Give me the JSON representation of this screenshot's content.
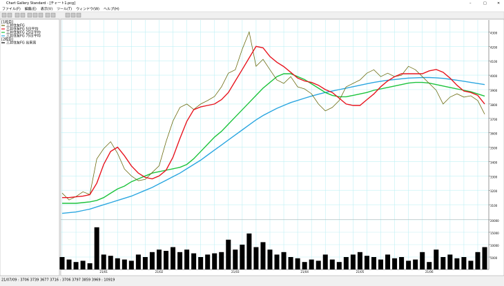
{
  "window": {
    "title": "Chart Gallery Standard - [チャート1.pcg]",
    "menu": [
      "ファイル(F)",
      "編集(E)",
      "表示(V)",
      "ツール(T)",
      "ウィンドウ(W)",
      "ヘルプ(H)"
    ]
  },
  "panel": {
    "section1": "[1段目]",
    "section2": "[2段目]"
  },
  "status": "21/07/09 : 3706 3739 3677 3716 : 3706 3797 3859 3969 : 10919",
  "chart_data": {
    "type": "line",
    "grid": true,
    "categories": [
      null,
      null,
      null,
      null,
      null,
      null,
      "21/01",
      null,
      null,
      null,
      null,
      null,
      null,
      null,
      "21/02",
      null,
      null,
      null,
      null,
      null,
      null,
      null,
      null,
      null,
      null,
      "21/03",
      null,
      null,
      null,
      null,
      null,
      null,
      null,
      null,
      null,
      "21/04",
      null,
      null,
      null,
      null,
      null,
      null,
      null,
      "21/05",
      null,
      null,
      null,
      null,
      null,
      null,
      null,
      null,
      null,
      "21/06",
      null,
      null,
      null,
      null,
      null,
      null,
      null,
      null
    ],
    "ylim": [
      3000,
      4350
    ],
    "yticks": [
      3100,
      3200,
      3300,
      3400,
      3500,
      3600,
      3700,
      3800,
      3900,
      4000,
      4100,
      4200,
      4300
    ],
    "series": [
      {
        "name": "三井住友FG",
        "color": "#6b6b10",
        "values": [
          3181,
          3133,
          3157,
          3190,
          3171,
          3419,
          3490,
          3538,
          3457,
          3348,
          3300,
          3267,
          3276,
          3324,
          3371,
          3538,
          3681,
          3776,
          3800,
          3762,
          3800,
          3824,
          3852,
          3919,
          4014,
          4038,
          4181,
          4300,
          4062,
          4110,
          4038,
          3967,
          3943,
          3990,
          3919,
          3905,
          3871,
          3800,
          3752,
          3776,
          3824,
          3919,
          3943,
          3967,
          4014,
          4038,
          3990,
          4014,
          3990,
          4000,
          4062,
          4038,
          3990,
          3943,
          3895,
          3800,
          3848,
          3871,
          3848,
          3857,
          3824,
          3729
        ]
      },
      {
        "name": "三井住友FG 5日平均",
        "color": "#e8141e",
        "values": [
          3150,
          3150,
          3155,
          3160,
          3170,
          3250,
          3380,
          3470,
          3500,
          3440,
          3370,
          3320,
          3290,
          3280,
          3300,
          3340,
          3430,
          3560,
          3680,
          3760,
          3780,
          3790,
          3800,
          3830,
          3880,
          3960,
          4040,
          4120,
          4200,
          4190,
          4130,
          4090,
          4060,
          4020,
          3980,
          3960,
          3950,
          3930,
          3900,
          3880,
          3840,
          3800,
          3790,
          3790,
          3830,
          3870,
          3920,
          3960,
          3990,
          4010,
          4010,
          4010,
          4010,
          4030,
          4040,
          4020,
          3980,
          3930,
          3890,
          3880,
          3860,
          3800
        ]
      },
      {
        "name": "三井住友FG 25日平均",
        "color": "#1cc33c",
        "values": [
          3110,
          3110,
          3110,
          3115,
          3120,
          3130,
          3150,
          3180,
          3210,
          3230,
          3260,
          3280,
          3300,
          3320,
          3330,
          3340,
          3350,
          3360,
          3380,
          3420,
          3470,
          3520,
          3570,
          3610,
          3660,
          3710,
          3760,
          3810,
          3860,
          3910,
          3950,
          3990,
          4010,
          4010,
          3990,
          3970,
          3940,
          3910,
          3880,
          3860,
          3850,
          3850,
          3860,
          3870,
          3880,
          3895,
          3905,
          3915,
          3925,
          3935,
          3945,
          3950,
          3950,
          3945,
          3935,
          3925,
          3915,
          3905,
          3895,
          3885,
          3870,
          3855
        ]
      },
      {
        "name": "三井住友FG 75日平均",
        "color": "#2aa6e0",
        "values": [
          3040,
          3045,
          3050,
          3060,
          3070,
          3085,
          3100,
          3115,
          3130,
          3145,
          3160,
          3180,
          3200,
          3220,
          3245,
          3270,
          3295,
          3320,
          3350,
          3380,
          3410,
          3445,
          3480,
          3515,
          3550,
          3585,
          3620,
          3655,
          3690,
          3720,
          3745,
          3770,
          3790,
          3810,
          3825,
          3840,
          3855,
          3868,
          3880,
          3890,
          3900,
          3910,
          3920,
          3930,
          3940,
          3950,
          3958,
          3965,
          3970,
          3975,
          3980,
          3982,
          3984,
          3984,
          3982,
          3978,
          3972,
          3965,
          3958,
          3950,
          3942,
          3935
        ]
      }
    ],
    "volume": {
      "name": "三井住友FG 出来高",
      "color": "#000000",
      "ylim": [
        0,
        20000
      ],
      "yticks": [
        5000,
        10000,
        15000,
        20000
      ],
      "values": [
        5000,
        4000,
        3000,
        3500,
        2500,
        17000,
        6000,
        5500,
        4500,
        4000,
        3500,
        6000,
        5000,
        7000,
        8000,
        7500,
        9000,
        7000,
        8000,
        6500,
        5000,
        6000,
        6500,
        7000,
        12000,
        8000,
        10000,
        14500,
        9000,
        11000,
        8000,
        6000,
        7000,
        5000,
        4500,
        3000,
        4000,
        3500,
        6000,
        4000,
        3000,
        5000,
        6000,
        7000,
        5500,
        5000,
        4000,
        6000,
        4500,
        5000,
        3500,
        4000,
        7000,
        3000,
        8000,
        5000,
        6000,
        4500,
        5000,
        3500,
        7000,
        9000
      ]
    }
  }
}
